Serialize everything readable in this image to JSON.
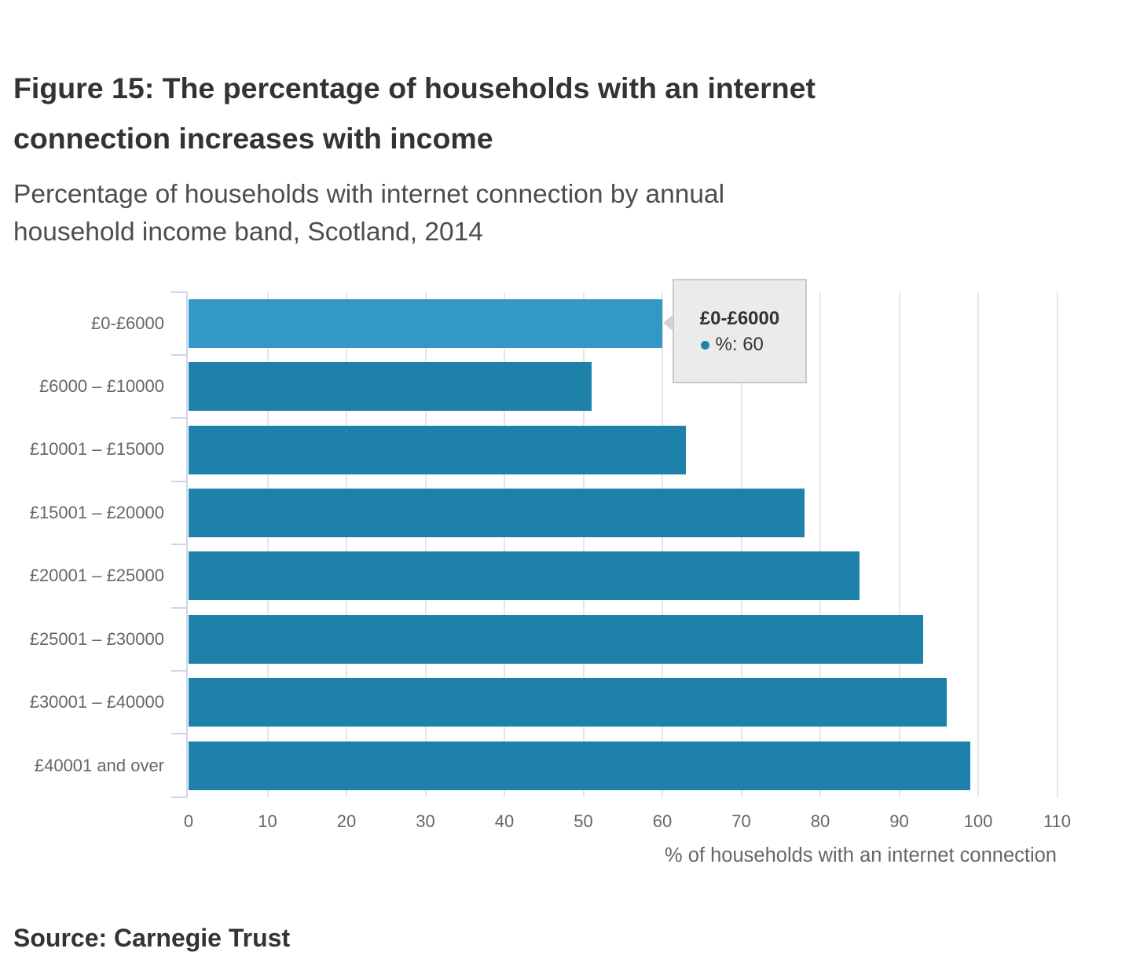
{
  "chart_data": {
    "type": "bar",
    "orientation": "horizontal",
    "title": "Figure 15: The percentage of households with an internet connection increases with income",
    "title_lines": [
      "Figure 15: The percentage of households with an internet",
      "connection increases with income"
    ],
    "subtitle": "Percentage of households with internet connection by annual household income band, Scotland, 2014",
    "subtitle_lines": [
      "Percentage of households with internet connection by annual",
      "household income band, Scotland, 2014"
    ],
    "categories": [
      "£0-£6000",
      "£6000 – £10000",
      "£10001 – £15000",
      "£15001 – £20000",
      "£20001 – £25000",
      "£25001 – £30000",
      "£30001 – £40000",
      "£40001 and over"
    ],
    "values": [
      60,
      51,
      63,
      78,
      85,
      93,
      96,
      99
    ],
    "series_name": "%",
    "xlabel": "% of households with an internet connection",
    "xlim": [
      0,
      110
    ],
    "xticks": [
      0,
      10,
      20,
      30,
      40,
      50,
      60,
      70,
      80,
      90,
      100,
      110
    ],
    "grid": "vertical",
    "legend": "none",
    "bar_color": "#1e81a9",
    "highlighted_bar_color": "#3398c6",
    "highlighted_index": 0
  },
  "tooltip": {
    "category": "£0-£6000",
    "series_label": "%:",
    "value": "60",
    "marker_color": "#1e81a9"
  },
  "source": {
    "label": "Source: Carnegie Trust"
  },
  "colors": {
    "title": "#333333",
    "subtitle": "#4d4d4d",
    "axis_text": "#666666",
    "grid": "#e6e6e6",
    "axis_line": "#ccd6eb",
    "tooltip_bg": "#ebebeb",
    "tooltip_border": "#c9c9c9"
  }
}
